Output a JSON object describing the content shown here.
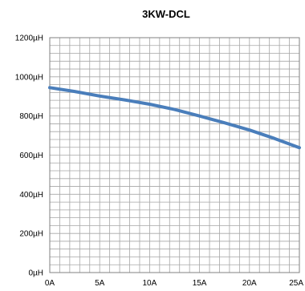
{
  "chart_data": {
    "type": "line",
    "title": "3KW-DCL",
    "xlabel": "",
    "ylabel": "",
    "x_unit": "A",
    "y_unit": "µH",
    "xlim": [
      0,
      25
    ],
    "ylim": [
      0,
      1200
    ],
    "x_ticks": [
      "0A",
      "5A",
      "10A",
      "15A",
      "20A",
      "25A"
    ],
    "y_ticks": [
      "0µH",
      "200µH",
      "400µH",
      "600µH",
      "800µH",
      "1000µH",
      "1200µH"
    ],
    "grid": true,
    "series_color": "#4a7ebb",
    "series": [
      {
        "x": [
          0,
          2.5,
          5,
          7.5,
          10,
          12.5,
          15,
          17.5,
          20,
          22.5,
          25
        ],
        "values": [
          945,
          925,
          902,
          882,
          860,
          833,
          800,
          765,
          728,
          685,
          638
        ]
      }
    ]
  }
}
